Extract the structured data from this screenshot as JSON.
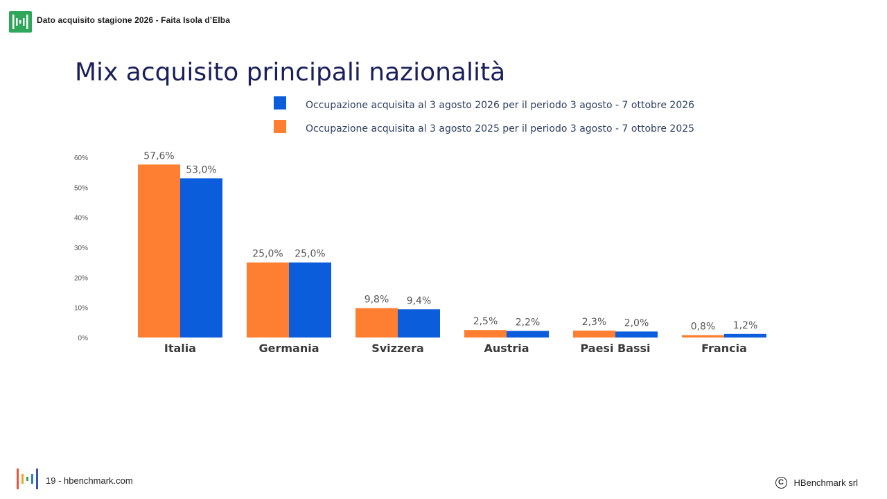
{
  "header": {
    "text": "Dato acquisito stagione 2026 - Faita Isola d’Elba"
  },
  "footer": {
    "page_text": "19 - hbenchmark.com",
    "copyright_symbol": "C",
    "copyright_text": "HBenchmark srl"
  },
  "colors": {
    "brand_green": "#2fa65a",
    "title": "#1a1f5c"
  },
  "chart_data": {
    "type": "bar",
    "title": "Mix acquisito principali nazionalità",
    "categories": [
      "Italia",
      "Germania",
      "Svizzera",
      "Austria",
      "Paesi Bassi",
      "Francia"
    ],
    "series": [
      {
        "name": "Occupazione acquisita al 3 agosto 2025 per il periodo 3 agosto - 7 ottobre 2025",
        "color": "#ff7f32",
        "values": [
          57.6,
          25.0,
          9.8,
          2.5,
          2.3,
          0.8
        ],
        "labels": [
          "57,6%",
          "25,0%",
          "9,8%",
          "2,5%",
          "2,3%",
          "0,8%"
        ]
      },
      {
        "name": "Occupazione acquisita al 3 agosto 2026 per il periodo 3 agosto - 7 ottobre 2026",
        "color": "#0b5ddc",
        "values": [
          53.0,
          25.0,
          9.4,
          2.2,
          2.0,
          1.2
        ],
        "labels": [
          "53,0%",
          "25,0%",
          "9,4%",
          "2,2%",
          "2,0%",
          "1,2%"
        ]
      }
    ],
    "legend_order": [
      1,
      0
    ],
    "legend_position": "top",
    "ylim": [
      0,
      60
    ],
    "yticks": [
      0,
      10,
      20,
      30,
      40,
      50,
      60
    ],
    "ytick_labels": [
      "0%",
      "10%",
      "20%",
      "30%",
      "40%",
      "50%",
      "60%"
    ],
    "grid": false
  }
}
